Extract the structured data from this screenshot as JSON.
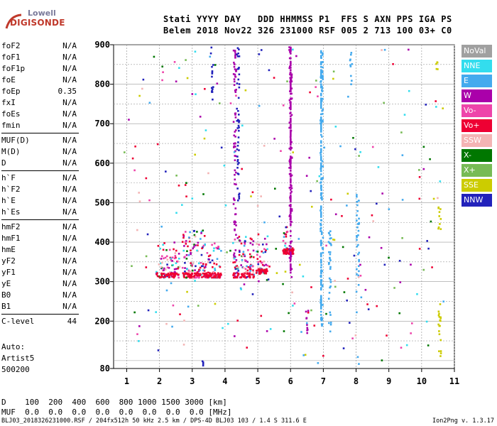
{
  "logo": {
    "line1": "Lowell",
    "line2": "DIGISONDE"
  },
  "header": {
    "line1": "Stati YYYY DAY   DDD HHMMSS P1  FFS S AXN PPS IGA PS",
    "line2": "Belem 2018 Nov22 326 231000 RSF 005 2 713 100 03+ C0"
  },
  "params": [
    {
      "name": "foF2",
      "value": "N/A"
    },
    {
      "name": "foF1",
      "value": "N/A"
    },
    {
      "name": "foF1p",
      "value": "N/A"
    },
    {
      "name": "foE",
      "value": "N/A"
    },
    {
      "name": "foEp",
      "value": "0.35"
    },
    {
      "name": "fxI",
      "value": "N/A"
    },
    {
      "name": "foEs",
      "value": "N/A"
    },
    {
      "name": "fmin",
      "value": "N/A"
    },
    {
      "name": "MUF(D)",
      "value": "N/A",
      "sep": true
    },
    {
      "name": "M(D)",
      "value": "N/A"
    },
    {
      "name": "D",
      "value": "N/A"
    },
    {
      "name": "h`F",
      "value": "N/A",
      "sep": true
    },
    {
      "name": "h`F2",
      "value": "N/A"
    },
    {
      "name": "h`E",
      "value": "N/A"
    },
    {
      "name": "h`Es",
      "value": "N/A"
    },
    {
      "name": "hmF2",
      "value": "N/A",
      "sep": true
    },
    {
      "name": "hmF1",
      "value": "N/A"
    },
    {
      "name": "hmE",
      "value": "N/A"
    },
    {
      "name": "yF2",
      "value": "N/A"
    },
    {
      "name": "yF1",
      "value": "N/A"
    },
    {
      "name": "yE",
      "value": "N/A"
    },
    {
      "name": "B0",
      "value": "N/A"
    },
    {
      "name": "B1",
      "value": "N/A"
    },
    {
      "name": "C-level",
      "value": "44",
      "sep": true
    }
  ],
  "auto": {
    "label": "Auto:",
    "artist": "Artist5",
    "code": "500200"
  },
  "legend": [
    {
      "label": "NoVal",
      "color": "#a0a0a0"
    },
    {
      "label": "NNE",
      "color": "#33ddee"
    },
    {
      "label": "E",
      "color": "#44aaee"
    },
    {
      "label": "W",
      "color": "#aa00aa"
    },
    {
      "label": "Vo-",
      "color": "#ee44aa"
    },
    {
      "label": "Vo+",
      "color": "#ee0033"
    },
    {
      "label": "SSW",
      "color": "#f4b4b4"
    },
    {
      "label": "X-",
      "color": "#007700"
    },
    {
      "label": "X+",
      "color": "#77bb55"
    },
    {
      "label": "SSE",
      "color": "#cccc00"
    },
    {
      "label": "NNW",
      "color": "#2222bb"
    }
  ],
  "bottom": {
    "d_line": "D    100  200  400  600  800 1000 1500 3000 [km]",
    "muf_line": "MUF  0.0  0.0  0.0  0.0  0.0  0.0  0.0  0.0 [MHz]"
  },
  "footer": {
    "file_info": "BLJ03_2018326231000.RSF / 204fx512h 50 kHz 2.5 km / DPS-4D BLJ03 103 / 1.4 S 311.6 E",
    "version": "Ion2Png v. 1.3.17"
  },
  "chart_data": {
    "type": "scatter",
    "title": "",
    "xlabel": "",
    "ylabel": "",
    "xlim": [
      0.6,
      11
    ],
    "ylim": [
      80,
      900
    ],
    "xticks": [
      1,
      2,
      3,
      4,
      5,
      6,
      7,
      8,
      9,
      10,
      11
    ],
    "yticks": [
      80,
      200,
      300,
      400,
      500,
      600,
      700,
      800,
      900
    ],
    "grid": true,
    "series": [
      {
        "name": "F-layer ordinary traces (Vo+/Vo-/W)",
        "color_key": "Vo+",
        "clusters": [
          {
            "x_range": [
              1.9,
              2.6
            ],
            "y_range": [
              310,
              400
            ]
          },
          {
            "x_range": [
              2.7,
              3.4
            ],
            "y_range": [
              310,
              430
            ]
          },
          {
            "x_range": [
              3.4,
              3.9
            ],
            "y_range": [
              310,
              400
            ]
          },
          {
            "x_range": [
              4.25,
              4.9
            ],
            "y_range": [
              310,
              420
            ]
          },
          {
            "x_range": [
              4.95,
              5.3
            ],
            "y_range": [
              320,
              420
            ]
          },
          {
            "x_range": [
              5.75,
              6.1
            ],
            "y_range": [
              370,
              440
            ]
          }
        ]
      },
      {
        "name": "Eastward echoes",
        "color_key": "E",
        "vertical_traces": [
          {
            "x": 6.95,
            "y_range": [
              180,
              900
            ]
          },
          {
            "x": 7.2,
            "y_range": [
              170,
              460
            ]
          },
          {
            "x": 7.85,
            "y_range": [
              800,
              880
            ]
          },
          {
            "x": 8.05,
            "y_range": [
              220,
              520
            ]
          }
        ]
      },
      {
        "name": "SSE echoes",
        "color_key": "SSE",
        "vertical_traces": [
          {
            "x": 10.45,
            "y_range": [
              830,
              870
            ]
          },
          {
            "x": 10.55,
            "y_range": [
              430,
              500
            ]
          },
          {
            "x": 10.55,
            "y_range": [
              100,
              250
            ]
          }
        ]
      },
      {
        "name": "Westward echoes",
        "color_key": "W",
        "vertical_traces": [
          {
            "x": 6.0,
            "y_range": [
              310,
              900
            ]
          },
          {
            "x": 6.5,
            "y_range": [
              160,
              230
            ]
          },
          {
            "x": 4.3,
            "y_range": [
              360,
              900
            ]
          }
        ]
      },
      {
        "name": "NNW echoes",
        "color_key": "NNW",
        "vertical_traces": [
          {
            "x": 3.6,
            "y_range": [
              780,
              900
            ]
          },
          {
            "x": 4.4,
            "y_range": [
              500,
              900
            ]
          },
          {
            "x": 3.3,
            "y_range": [
              80,
              120
            ]
          }
        ]
      }
    ]
  }
}
